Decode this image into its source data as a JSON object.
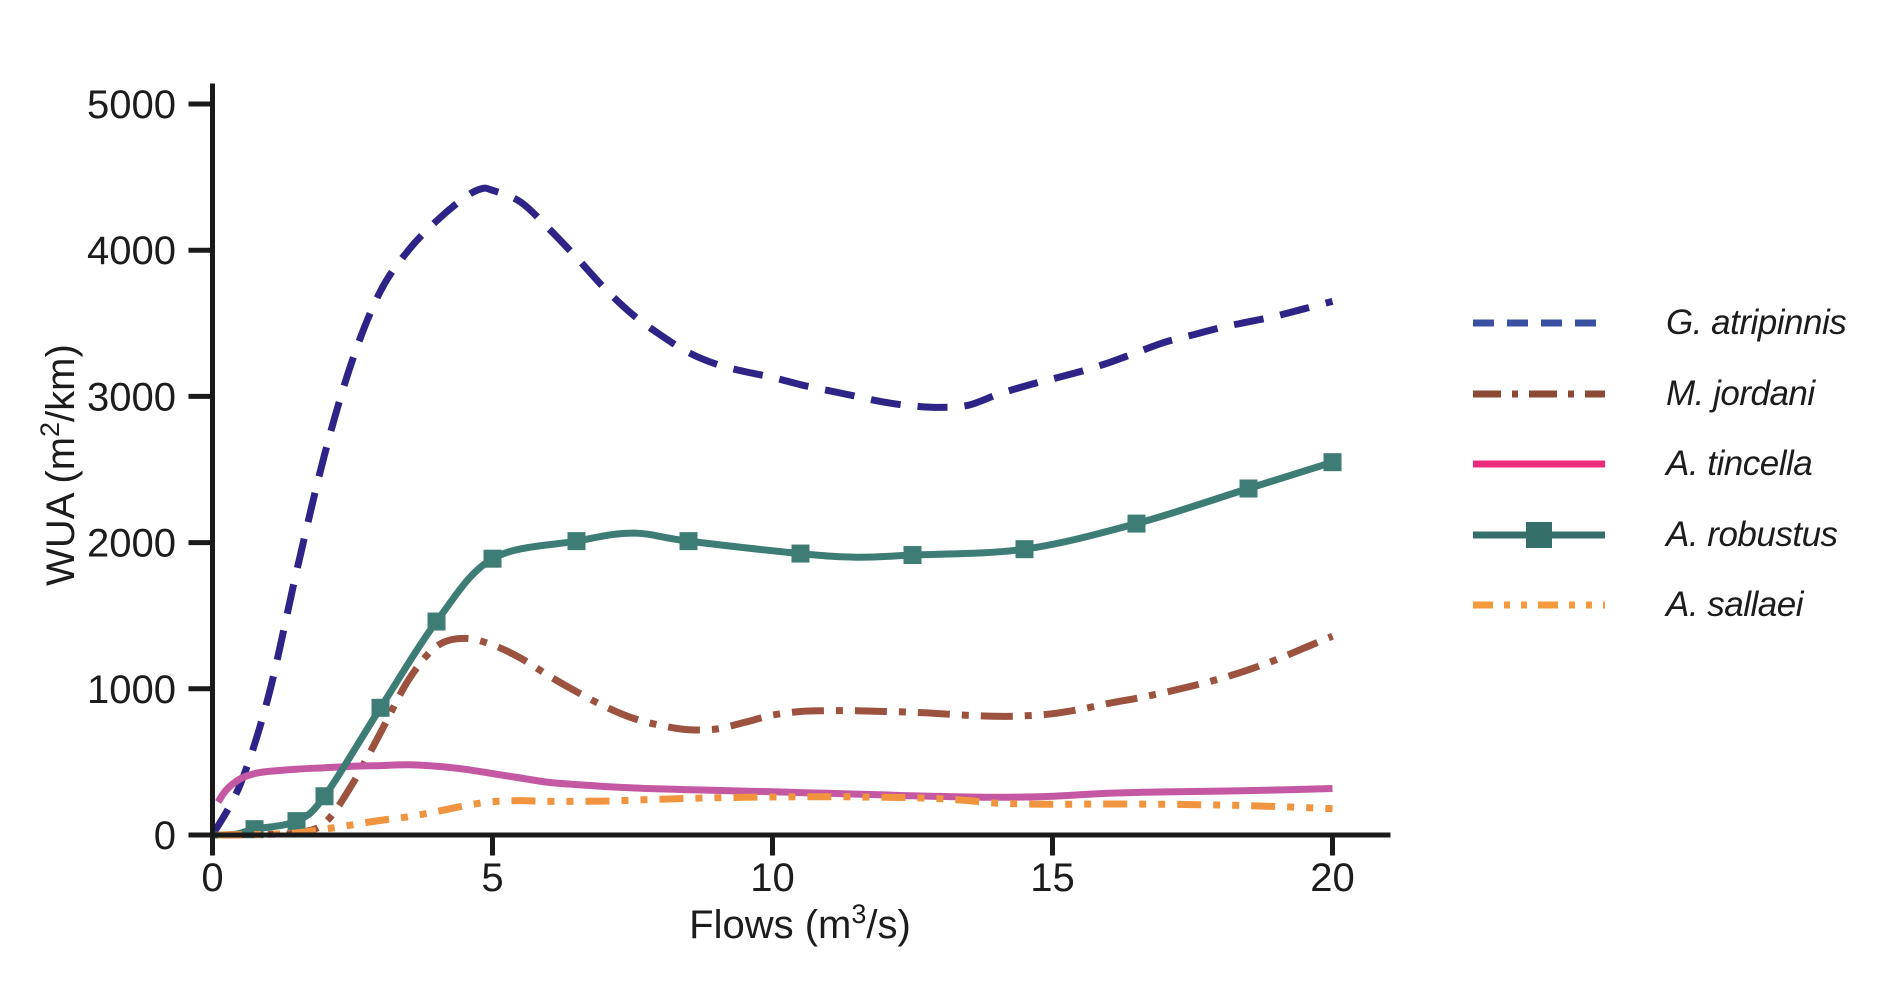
{
  "figure": {
    "background": "#ffffff",
    "axis_color": "#1a1a1a",
    "text_color": "#1c1c1c"
  },
  "chart_data": {
    "type": "line",
    "title": "",
    "xlabel": {
      "pre": "Flows (m",
      "sup": "3",
      "post": "/s)"
    },
    "ylabel": {
      "pre": "WUA (m",
      "sup": "2",
      "post": "/km)"
    },
    "xlim": [
      0,
      21
    ],
    "ylim": [
      0,
      5000
    ],
    "x_ticks": [
      0,
      5,
      10,
      15,
      20
    ],
    "y_ticks": [
      0,
      1000,
      2000,
      3000,
      4000,
      5000
    ],
    "grid": false,
    "legend_position": "right",
    "series": [
      {
        "name": "G. atripinnis",
        "color": "#2e2487",
        "legend_color": "#3a51a3",
        "style": "dashed",
        "dash": [
          30,
          17
        ],
        "legend_dash": [
          21,
          13
        ],
        "marker": null,
        "x": [
          0,
          0.5,
          1,
          1.5,
          2,
          2.5,
          3,
          3.5,
          4,
          4.5,
          4.8,
          5,
          5.5,
          6,
          6.5,
          7,
          7.5,
          8,
          8.5,
          9,
          9.5,
          10,
          10.5,
          11,
          11.5,
          12,
          12.5,
          13,
          13.5,
          14,
          14.5,
          15,
          15.5,
          16,
          16.5,
          17,
          17.5,
          18,
          18.5,
          19,
          19.5,
          20
        ],
        "y": [
          0,
          350,
          950,
          1800,
          2600,
          3250,
          3720,
          4000,
          4200,
          4360,
          4420,
          4410,
          4330,
          4150,
          3950,
          3740,
          3560,
          3420,
          3300,
          3220,
          3170,
          3130,
          3080,
          3040,
          3000,
          2960,
          2935,
          2925,
          2940,
          3010,
          3070,
          3120,
          3170,
          3230,
          3300,
          3370,
          3420,
          3470,
          3510,
          3550,
          3600,
          3650
        ]
      },
      {
        "name": "M. jordani",
        "color": "#9b523f",
        "legend_color": "#8c4936",
        "style": "dash-dot",
        "dash": [
          32,
          12,
          7,
          12
        ],
        "legend_dash": [
          28,
          11,
          6,
          11
        ],
        "marker": null,
        "x": [
          0.2,
          1,
          1.5,
          2,
          2.5,
          3,
          3.5,
          4,
          4.5,
          5,
          5.5,
          6,
          6.5,
          7,
          7.5,
          8,
          8.5,
          9,
          9.5,
          10,
          10.5,
          11,
          11.5,
          12,
          12.5,
          13,
          13.5,
          14,
          14.5,
          15,
          15.5,
          16,
          16.5,
          17,
          17.5,
          18,
          18.5,
          19,
          19.5,
          20
        ],
        "y": [
          0,
          5,
          15,
          80,
          350,
          700,
          1060,
          1290,
          1345,
          1300,
          1210,
          1090,
          980,
          880,
          800,
          750,
          720,
          725,
          770,
          820,
          845,
          850,
          850,
          845,
          840,
          830,
          818,
          812,
          815,
          830,
          860,
          900,
          935,
          975,
          1020,
          1070,
          1130,
          1200,
          1280,
          1360
        ]
      },
      {
        "name": "A. tincella",
        "color": "#c558a2",
        "legend_color": "#ee2a7c",
        "style": "solid",
        "dash": null,
        "legend_dash": null,
        "marker": null,
        "x": [
          0.1,
          0.25,
          0.5,
          0.75,
          1,
          1.5,
          2,
          2.5,
          3,
          3.5,
          4,
          4.5,
          5,
          5.5,
          6,
          6.5,
          7,
          7.5,
          8,
          8.5,
          9,
          9.5,
          10,
          10.5,
          11,
          11.5,
          12,
          12.5,
          13,
          13.5,
          14,
          14.5,
          15,
          16,
          17,
          18,
          19,
          20
        ],
        "y": [
          225,
          310,
          385,
          420,
          435,
          450,
          460,
          470,
          475,
          480,
          470,
          450,
          420,
          390,
          360,
          345,
          332,
          322,
          315,
          310,
          305,
          300,
          296,
          290,
          285,
          280,
          274,
          268,
          264,
          260,
          258,
          260,
          265,
          285,
          295,
          300,
          308,
          318
        ]
      },
      {
        "name": "A. robustus",
        "color": "#3e7d75",
        "legend_color": "#356f69",
        "style": "solid",
        "dash": null,
        "legend_dash": null,
        "marker": "square",
        "marker_size": 18,
        "markers_at": [
          0.75,
          1.5,
          2,
          3,
          4,
          5,
          6.5,
          8.5,
          10.5,
          12.5,
          14.5,
          16.5,
          18.5,
          20
        ],
        "x": [
          0,
          0.4,
          0.75,
          1.5,
          2,
          3,
          4,
          5,
          6.5,
          7.5,
          8.5,
          10.5,
          11.5,
          12.5,
          14.5,
          16.5,
          18.5,
          20
        ],
        "y": [
          0,
          5,
          40,
          95,
          265,
          870,
          1460,
          1890,
          2010,
          2065,
          2010,
          1925,
          1900,
          1915,
          1955,
          2130,
          2370,
          2550
        ]
      },
      {
        "name": "A. sallaei",
        "color": "#f09440",
        "legend_color": "#f5993d",
        "style": "dash-dot-dot",
        "dash": [
          24,
          12,
          7,
          12,
          7,
          12
        ],
        "legend_dash": [
          20,
          11,
          6,
          11,
          6,
          11
        ],
        "marker": null,
        "x": [
          0.1,
          0.5,
          1,
          1.5,
          2,
          2.5,
          3,
          3.5,
          4,
          4.5,
          5,
          5.5,
          6,
          7,
          8,
          9,
          10,
          11,
          12,
          12.5,
          13,
          13.5,
          14,
          15,
          16,
          17,
          18,
          19,
          20
        ],
        "y": [
          0,
          2,
          5,
          15,
          40,
          70,
          100,
          125,
          160,
          200,
          228,
          235,
          230,
          232,
          245,
          255,
          260,
          262,
          258,
          255,
          248,
          235,
          218,
          210,
          212,
          210,
          205,
          195,
          180
        ]
      }
    ]
  }
}
